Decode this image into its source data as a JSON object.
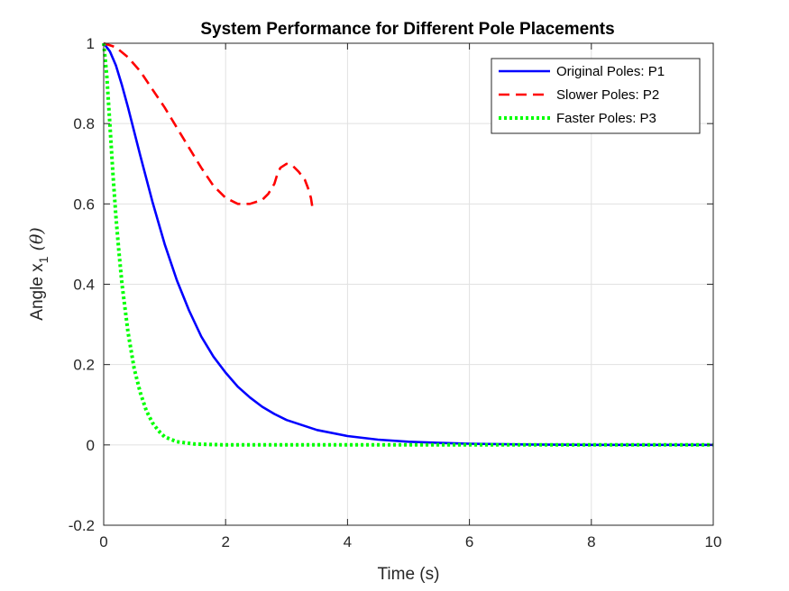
{
  "chart_data": {
    "type": "line",
    "title": "System Performance for Different Pole Placements",
    "xlabel": "Time (s)",
    "ylabel_main": "Angle x",
    "ylabel_sub": "1",
    "ylabel_symbol": "(θ)",
    "xlim": [
      0,
      10
    ],
    "ylim": [
      -0.2,
      1
    ],
    "xticks": [
      0,
      2,
      4,
      6,
      8,
      10
    ],
    "xtick_labels": [
      "0",
      "2",
      "4",
      "6",
      "8",
      "10"
    ],
    "yticks": [
      -0.2,
      0,
      0.2,
      0.4,
      0.6,
      0.8,
      1
    ],
    "ytick_labels": [
      "-0.2",
      "0",
      "0.2",
      "0.4",
      "0.6",
      "0.8",
      "1"
    ],
    "grid": true,
    "legend_position": "top-right",
    "series": [
      {
        "name": "Original Poles: P1",
        "color": "#0000ff",
        "style": "solid",
        "x": [
          0,
          0.1,
          0.2,
          0.3,
          0.4,
          0.5,
          0.6,
          0.8,
          1.0,
          1.2,
          1.4,
          1.6,
          1.8,
          2.0,
          2.2,
          2.4,
          2.6,
          2.8,
          3.0,
          3.5,
          4.0,
          4.5,
          5.0,
          5.5,
          6.0,
          7.0,
          8.0,
          9.0,
          10.0
        ],
        "y": [
          1.0,
          0.98,
          0.945,
          0.895,
          0.84,
          0.78,
          0.72,
          0.605,
          0.5,
          0.41,
          0.335,
          0.27,
          0.22,
          0.18,
          0.145,
          0.118,
          0.095,
          0.077,
          0.062,
          0.037,
          0.022,
          0.013,
          0.008,
          0.005,
          0.003,
          0.001,
          0.0,
          0.0,
          0.0
        ]
      },
      {
        "name": "Slower Poles: P2",
        "color": "#ff0000",
        "style": "dashed",
        "x": [
          0,
          0.2,
          0.4,
          0.6,
          0.8,
          1.0,
          1.2,
          1.4,
          1.6,
          1.8,
          2.0,
          2.2,
          2.4,
          2.6,
          2.7,
          2.8,
          2.85,
          2.9,
          3.0,
          3.1,
          3.2,
          3.3,
          3.35,
          3.4,
          3.42
        ],
        "y": [
          1.0,
          0.99,
          0.965,
          0.93,
          0.885,
          0.84,
          0.79,
          0.74,
          0.69,
          0.645,
          0.615,
          0.6,
          0.6,
          0.61,
          0.625,
          0.65,
          0.675,
          0.69,
          0.7,
          0.695,
          0.68,
          0.66,
          0.64,
          0.615,
          0.595
        ]
      },
      {
        "name": "Faster Poles: P3",
        "color": "#00ff00",
        "style": "dotted",
        "x": [
          0,
          0.05,
          0.1,
          0.15,
          0.2,
          0.25,
          0.3,
          0.4,
          0.5,
          0.6,
          0.7,
          0.8,
          0.9,
          1.0,
          1.2,
          1.5,
          2.0,
          3.0,
          5.0,
          10.0
        ],
        "y": [
          1.0,
          0.92,
          0.8,
          0.68,
          0.57,
          0.48,
          0.4,
          0.28,
          0.19,
          0.13,
          0.085,
          0.055,
          0.035,
          0.02,
          0.008,
          0.002,
          0.0,
          0.0,
          0.0,
          0.0
        ]
      }
    ]
  }
}
